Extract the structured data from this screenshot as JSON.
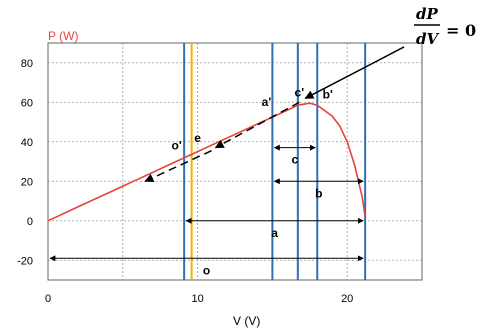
{
  "chart_data": {
    "type": "line",
    "ylabel": "P (W)",
    "xlabel": "V (V)",
    "xlim": [
      0,
      25
    ],
    "ylim": [
      -30,
      90
    ],
    "x_ticks": [
      0,
      10,
      20
    ],
    "y_ticks": [
      -20,
      0,
      20,
      40,
      60,
      80
    ],
    "grid": true,
    "series": [
      {
        "color": "#e8443a",
        "x": [
          0,
          2,
          4,
          6,
          8,
          10,
          12,
          14,
          15,
          16,
          16.7,
          17.5,
          18,
          19,
          19.5,
          20,
          20.5,
          21,
          21.2
        ],
        "y": [
          0,
          7,
          14,
          21,
          28,
          35,
          42,
          49,
          52.5,
          56,
          58.5,
          59.5,
          58.5,
          53,
          48,
          40,
          28,
          12,
          2
        ]
      }
    ],
    "vertical_lines": [
      {
        "x": 9.1,
        "color": "#2f6fb5"
      },
      {
        "x": 9.6,
        "color": "#f0b400"
      },
      {
        "x": 15.0,
        "color": "#2f6fb5"
      },
      {
        "x": 16.7,
        "color": "#2f6fb5"
      },
      {
        "x": 18.0,
        "color": "#2f6fb5"
      },
      {
        "x": 21.2,
        "color": "#2f6fb5"
      }
    ],
    "ranges": [
      {
        "label": "a",
        "x1": 9.1,
        "x2": 21.2,
        "y": 0
      },
      {
        "label": "b",
        "x1": 15.0,
        "x2": 21.2,
        "y": 20
      },
      {
        "label": "c",
        "x1": 15.0,
        "x2": 18.0,
        "y": 37
      },
      {
        "label": "o",
        "x1": 0,
        "x2": 21.2,
        "y": -19
      }
    ],
    "point_labels": [
      {
        "label": "a'",
        "x": 14.6,
        "y": 58
      },
      {
        "label": "c'",
        "x": 16.8,
        "y": 63
      },
      {
        "label": "b'",
        "x": 18.7,
        "y": 62
      },
      {
        "label": "o'",
        "x": 8.6,
        "y": 36
      },
      {
        "label": "e",
        "x": 10.0,
        "y": 40
      }
    ],
    "arrow_line": {
      "x1": 23.8,
      "y1": 88,
      "x2": 6.5,
      "y2": 20,
      "head_end": [
        17.2,
        62
      ],
      "head_mid": [
        11.2,
        37
      ],
      "head_start": [
        6.5,
        20
      ]
    },
    "equation": {
      "numerator": "dP",
      "denominator": "dV",
      "rhs": "= 0"
    },
    "colors": {
      "curve": "#e8443a",
      "vline": "#2f6fb5",
      "vline_highlight": "#f0b400",
      "grid": "#9a9a9a",
      "ylabel": "#e8443a"
    }
  }
}
